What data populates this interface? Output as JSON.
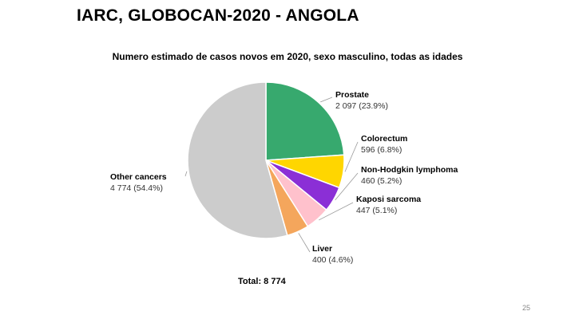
{
  "slide": {
    "title": "IARC, GLOBOCAN-2020 - ANGOLA",
    "page_number": "25"
  },
  "chart_data": {
    "type": "pie",
    "title": "Numero estimado de casos novos em 2020, sexo masculino, todas as idades",
    "total_label": "Total: 8 774",
    "slices": [
      {
        "name": "Prostate",
        "value": 2097,
        "label": "2 097 (23.9%)",
        "color": "#37a96e"
      },
      {
        "name": "Colorectum",
        "value": 596,
        "label": "596 (6.8%)",
        "color": "#ffd600"
      },
      {
        "name": "Non-Hodgkin lymphoma",
        "value": 460,
        "label": "460 (5.2%)",
        "color": "#8b2fd6"
      },
      {
        "name": "Kaposi sarcoma",
        "value": 447,
        "label": "447 (5.1%)",
        "color": "#ffc1cc"
      },
      {
        "name": "Liver",
        "value": 400,
        "label": "400 (4.6%)",
        "color": "#f4a65c"
      },
      {
        "name": "Other cancers",
        "value": 4774,
        "label": "4 774 (54.4%)",
        "color": "#cccccc"
      }
    ]
  }
}
